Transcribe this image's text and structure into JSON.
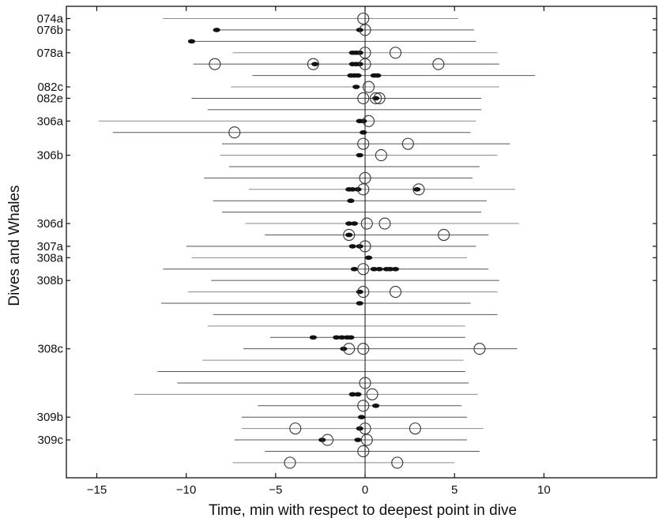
{
  "chart_data": {
    "type": "scatter",
    "xlabel": "Time, min with respect to deepest point in dive",
    "ylabel": "Dives and Whales",
    "xlim": [
      -16.7,
      16.3
    ],
    "xticks": [
      -15,
      -10,
      -5,
      0,
      5,
      10
    ],
    "ylabels": [
      {
        "label": "074a",
        "row": 1
      },
      {
        "label": "076b",
        "row": 2
      },
      {
        "label": "078a",
        "row": 4
      },
      {
        "label": "082c",
        "row": 7
      },
      {
        "label": "082e",
        "row": 8
      },
      {
        "label": "306a",
        "row": 10
      },
      {
        "label": "306b",
        "row": 13
      },
      {
        "label": "306d",
        "row": 19
      },
      {
        "label": "307a",
        "row": 21
      },
      {
        "label": "308a",
        "row": 22
      },
      {
        "label": "308b",
        "row": 24
      },
      {
        "label": "308c",
        "row": 30
      },
      {
        "label": "309b",
        "row": 36
      },
      {
        "label": "309c",
        "row": 38
      }
    ],
    "dives": [
      {
        "row": 1,
        "start": -11.3,
        "end": 5.2,
        "circles": [
          -0.1
        ],
        "dots": []
      },
      {
        "row": 2,
        "start": -8.3,
        "end": 6.1,
        "circles": [
          0.0
        ],
        "dots": [
          -8.3,
          -0.3
        ]
      },
      {
        "row": 3,
        "start": -9.7,
        "end": 6.2,
        "circles": [],
        "dots": [
          -9.7
        ]
      },
      {
        "row": 4,
        "start": -7.4,
        "end": 7.4,
        "circles": [
          0.0,
          1.7
        ],
        "dots": [
          -0.7,
          -0.5,
          -0.3
        ]
      },
      {
        "row": 5,
        "start": -9.6,
        "end": 7.5,
        "circles": [
          -8.4,
          -2.9,
          0.0,
          4.1
        ],
        "dots": [
          -2.8,
          -0.7,
          -0.5,
          -0.3
        ]
      },
      {
        "row": 6,
        "start": -6.3,
        "end": 9.5,
        "circles": [],
        "dots": [
          -0.8,
          -0.6,
          -0.4,
          0.5,
          0.7
        ]
      },
      {
        "row": 7,
        "start": -7.5,
        "end": 7.5,
        "circles": [
          0.2
        ],
        "dots": [
          -0.5
        ]
      },
      {
        "row": 8,
        "start": -9.7,
        "end": 6.5,
        "circles": [
          -0.1,
          0.6,
          0.8
        ],
        "dots": [
          0.6
        ]
      },
      {
        "row": 9,
        "start": -8.8,
        "end": 6.5,
        "circles": [],
        "dots": []
      },
      {
        "row": 10,
        "start": -14.9,
        "end": 6.2,
        "circles": [
          0.2
        ],
        "dots": [
          -0.3,
          -0.1
        ]
      },
      {
        "row": 11,
        "start": -14.1,
        "end": 5.9,
        "circles": [
          -7.3
        ],
        "dots": [
          -0.1
        ]
      },
      {
        "row": 12,
        "start": -8.0,
        "end": 8.1,
        "circles": [
          -0.1,
          2.4
        ],
        "dots": []
      },
      {
        "row": 13,
        "start": -8.1,
        "end": 7.4,
        "circles": [
          0.9
        ],
        "dots": [
          -0.3
        ]
      },
      {
        "row": 14,
        "start": -7.6,
        "end": 6.4,
        "circles": [],
        "dots": []
      },
      {
        "row": 15,
        "start": -9.0,
        "end": 6.0,
        "circles": [
          0.0
        ],
        "dots": []
      },
      {
        "row": 16,
        "start": -6.5,
        "end": 8.4,
        "circles": [
          -0.1,
          3.0
        ],
        "dots": [
          -0.9,
          -0.7,
          -0.4,
          2.9
        ]
      },
      {
        "row": 17,
        "start": -8.5,
        "end": 6.8,
        "circles": [],
        "dots": [
          -0.8
        ]
      },
      {
        "row": 18,
        "start": -8.0,
        "end": 6.5,
        "circles": [],
        "dots": []
      },
      {
        "row": 19,
        "start": -6.7,
        "end": 8.6,
        "circles": [
          0.1,
          1.1
        ],
        "dots": [
          -0.9,
          -0.6
        ]
      },
      {
        "row": 20,
        "start": -5.6,
        "end": 6.9,
        "circles": [
          -0.9,
          4.4
        ],
        "dots": [
          -0.9
        ]
      },
      {
        "row": 21,
        "start": -10.0,
        "end": 6.2,
        "circles": [
          0.0
        ],
        "dots": [
          -0.7,
          -0.3
        ]
      },
      {
        "row": 22,
        "start": -9.7,
        "end": 5.7,
        "circles": [],
        "dots": [
          0.2
        ]
      },
      {
        "row": 23,
        "start": -11.3,
        "end": 6.9,
        "circles": [
          -0.1
        ],
        "dots": [
          -0.6,
          0.5,
          0.8,
          1.2,
          1.4,
          1.7
        ]
      },
      {
        "row": 24,
        "start": -8.6,
        "end": 7.5,
        "circles": [],
        "dots": []
      },
      {
        "row": 25,
        "start": -9.9,
        "end": 7.4,
        "circles": [
          -0.1,
          1.7
        ],
        "dots": [
          -0.3
        ]
      },
      {
        "row": 26,
        "start": -11.4,
        "end": 5.9,
        "circles": [],
        "dots": [
          -0.3
        ]
      },
      {
        "row": 27,
        "start": -8.5,
        "end": 7.4,
        "circles": [],
        "dots": []
      },
      {
        "row": 28,
        "start": -8.8,
        "end": 5.6,
        "circles": [],
        "dots": []
      },
      {
        "row": 29,
        "start": -5.3,
        "end": 5.6,
        "circles": [],
        "dots": [
          -2.9,
          -1.6,
          -1.3,
          -1.0,
          -0.8
        ]
      },
      {
        "row": 30,
        "start": -6.8,
        "end": 8.5,
        "circles": [
          -0.9,
          -0.1,
          6.4
        ],
        "dots": [
          -1.2
        ]
      },
      {
        "row": 31,
        "start": -9.1,
        "end": 5.5,
        "circles": [],
        "dots": []
      },
      {
        "row": 32,
        "start": -11.6,
        "end": 5.6,
        "circles": [],
        "dots": []
      },
      {
        "row": 33,
        "start": -10.5,
        "end": 5.8,
        "circles": [
          0.0
        ],
        "dots": []
      },
      {
        "row": 34,
        "start": -12.9,
        "end": 6.3,
        "circles": [
          0.4
        ],
        "dots": [
          -0.7,
          -0.4
        ]
      },
      {
        "row": 35,
        "start": -6.0,
        "end": 5.4,
        "circles": [
          -0.1
        ],
        "dots": [
          0.6
        ]
      },
      {
        "row": 36,
        "start": -6.9,
        "end": 5.7,
        "circles": [],
        "dots": [
          -0.2
        ]
      },
      {
        "row": 37,
        "start": -6.9,
        "end": 6.6,
        "circles": [
          -3.9,
          0.0,
          2.8
        ],
        "dots": [
          -0.3
        ]
      },
      {
        "row": 38,
        "start": -7.3,
        "end": 5.7,
        "circles": [
          -2.1,
          0.1
        ],
        "dots": [
          -2.4,
          -0.4
        ]
      },
      {
        "row": 39,
        "start": -5.6,
        "end": 6.4,
        "circles": [
          -0.1
        ],
        "dots": []
      },
      {
        "row": 40,
        "start": -7.4,
        "end": 5.0,
        "circles": [
          -4.2,
          1.8
        ],
        "dots": []
      }
    ]
  }
}
